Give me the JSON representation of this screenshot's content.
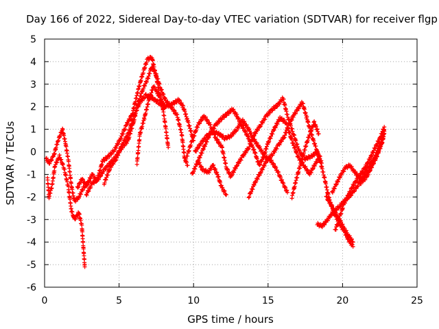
{
  "chart_data": {
    "type": "scatter",
    "title": "Day 166 of 2022, Sidereal Day-to-day VTEC variation (SDTVAR) for receiver flgp",
    "xlabel": "GPS time / hours",
    "ylabel": "SDTVAR / TECUs",
    "xlim": [
      0,
      25
    ],
    "ylim": [
      -6,
      5
    ],
    "xticks": [
      "0",
      "5",
      "10",
      "15",
      "20",
      "25"
    ],
    "yticks": [
      "-6",
      "-5",
      "-4",
      "-3",
      "-2",
      "-1",
      "0",
      "1",
      "2",
      "3",
      "4",
      "5"
    ],
    "grid": true,
    "marker": "+",
    "color": "#ff0000",
    "series": [
      {
        "name": "t1",
        "points": [
          [
            0.1,
            -0.3
          ],
          [
            0.3,
            -0.5
          ],
          [
            0.6,
            -0.2
          ],
          [
            0.9,
            0.5
          ],
          [
            1.2,
            1.0
          ],
          [
            1.4,
            0.4
          ],
          [
            1.6,
            -0.4
          ],
          [
            1.8,
            -1.5
          ],
          [
            2.0,
            -2.2
          ],
          [
            2.3,
            -2.0
          ],
          [
            2.6,
            -1.6
          ],
          [
            3.0,
            -1.3
          ]
        ]
      },
      {
        "name": "t2",
        "points": [
          [
            0.2,
            -1.2
          ],
          [
            0.3,
            -2.0
          ],
          [
            0.5,
            -1.5
          ],
          [
            0.7,
            -0.6
          ],
          [
            1.0,
            -0.2
          ],
          [
            1.3,
            -0.7
          ],
          [
            1.6,
            -1.6
          ],
          [
            1.8,
            -2.6
          ],
          [
            2.0,
            -3.0
          ],
          [
            2.3,
            -2.7
          ],
          [
            2.5,
            -3.3
          ],
          [
            2.6,
            -4.2
          ],
          [
            2.7,
            -5.1
          ]
        ]
      },
      {
        "name": "t3",
        "points": [
          [
            2.2,
            -1.6
          ],
          [
            2.5,
            -1.2
          ],
          [
            2.8,
            -1.5
          ],
          [
            3.2,
            -1.0
          ],
          [
            3.5,
            -1.3
          ],
          [
            3.9,
            -0.4
          ],
          [
            4.3,
            -0.2
          ],
          [
            4.7,
            0.1
          ],
          [
            5.1,
            0.6
          ],
          [
            5.5,
            1.2
          ],
          [
            5.9,
            1.7
          ],
          [
            6.3,
            2.8
          ],
          [
            6.6,
            3.5
          ],
          [
            6.9,
            4.1
          ],
          [
            7.2,
            4.2
          ],
          [
            7.5,
            3.3
          ],
          [
            7.7,
            2.6
          ],
          [
            7.9,
            2.1
          ],
          [
            8.1,
            1.2
          ],
          [
            8.3,
            0.2
          ]
        ]
      },
      {
        "name": "t4",
        "points": [
          [
            2.8,
            -1.9
          ],
          [
            3.2,
            -1.4
          ],
          [
            3.6,
            -1.2
          ],
          [
            4.0,
            -0.8
          ],
          [
            4.4,
            -0.5
          ],
          [
            4.8,
            -0.2
          ],
          [
            5.2,
            0.2
          ],
          [
            5.6,
            0.5
          ],
          [
            6.0,
            1.4
          ],
          [
            6.3,
            2.2
          ],
          [
            6.6,
            2.8
          ],
          [
            6.9,
            3.2
          ],
          [
            7.2,
            3.8
          ],
          [
            7.5,
            3.4
          ],
          [
            7.8,
            2.8
          ],
          [
            8.1,
            2.3
          ],
          [
            8.5,
            2.0
          ],
          [
            8.9,
            1.6
          ],
          [
            9.2,
            0.8
          ],
          [
            9.4,
            -0.3
          ],
          [
            9.6,
            -0.6
          ]
        ]
      },
      {
        "name": "t5",
        "points": [
          [
            4.0,
            -1.4
          ],
          [
            4.4,
            -0.7
          ],
          [
            4.8,
            -0.3
          ],
          [
            5.2,
            0.3
          ],
          [
            5.6,
            0.8
          ],
          [
            6.0,
            1.6
          ],
          [
            6.4,
            2.2
          ],
          [
            6.8,
            2.5
          ],
          [
            7.2,
            2.4
          ],
          [
            7.6,
            2.2
          ],
          [
            8.0,
            2.0
          ],
          [
            8.5,
            2.1
          ],
          [
            9.0,
            2.3
          ],
          [
            9.3,
            2.0
          ],
          [
            9.6,
            1.4
          ],
          [
            10.0,
            0.5
          ]
        ]
      },
      {
        "name": "t6",
        "points": [
          [
            6.2,
            -0.5
          ],
          [
            6.4,
            0.8
          ],
          [
            6.7,
            1.5
          ],
          [
            7.0,
            2.3
          ],
          [
            7.3,
            2.9
          ],
          [
            7.6,
            2.6
          ],
          [
            7.8,
            2.3
          ],
          [
            8.1,
            2.0
          ]
        ]
      },
      {
        "name": "t7",
        "points": [
          [
            9.5,
            -0.3
          ],
          [
            9.9,
            0.5
          ],
          [
            10.3,
            1.2
          ],
          [
            10.7,
            1.6
          ],
          [
            11.1,
            1.2
          ],
          [
            11.5,
            0.6
          ],
          [
            11.9,
            0.2
          ],
          [
            12.2,
            -0.7
          ],
          [
            12.5,
            -1.1
          ],
          [
            12.9,
            -0.6
          ],
          [
            13.3,
            -0.2
          ],
          [
            13.7,
            0.2
          ],
          [
            14.1,
            0.8
          ],
          [
            14.5,
            1.2
          ],
          [
            14.9,
            1.6
          ],
          [
            15.3,
            1.9
          ],
          [
            15.7,
            2.1
          ],
          [
            16.0,
            2.4
          ],
          [
            16.3,
            1.6
          ],
          [
            16.7,
            0.8
          ],
          [
            17.1,
            0.0
          ],
          [
            17.5,
            -0.3
          ],
          [
            17.9,
            -0.2
          ],
          [
            18.3,
            0.0
          ],
          [
            18.6,
            -0.5
          ]
        ]
      },
      {
        "name": "t8",
        "points": [
          [
            9.9,
            -1.0
          ],
          [
            10.3,
            -0.4
          ],
          [
            10.7,
            0.2
          ],
          [
            11.1,
            0.8
          ],
          [
            11.5,
            1.2
          ],
          [
            11.9,
            1.5
          ],
          [
            12.3,
            1.7
          ],
          [
            12.6,
            1.9
          ],
          [
            12.9,
            1.6
          ],
          [
            13.3,
            1.1
          ],
          [
            13.7,
            0.6
          ],
          [
            14.1,
            0.0
          ],
          [
            14.4,
            -0.6
          ],
          [
            14.7,
            -0.2
          ],
          [
            15.0,
            0.4
          ],
          [
            15.4,
            1.0
          ],
          [
            15.8,
            1.5
          ],
          [
            16.2,
            1.3
          ],
          [
            16.6,
            0.5
          ],
          [
            17.0,
            -0.2
          ],
          [
            17.4,
            -0.6
          ],
          [
            17.8,
            -1.0
          ],
          [
            18.1,
            -0.6
          ],
          [
            18.5,
            -0.2
          ]
        ]
      },
      {
        "name": "t9",
        "points": [
          [
            10.1,
            0.0
          ],
          [
            10.5,
            0.4
          ],
          [
            10.9,
            0.7
          ],
          [
            11.3,
            0.9
          ],
          [
            11.7,
            0.8
          ],
          [
            12.1,
            0.6
          ],
          [
            12.5,
            0.7
          ],
          [
            12.9,
            1.0
          ],
          [
            13.3,
            1.4
          ],
          [
            13.7,
            1.0
          ],
          [
            14.0,
            0.6
          ],
          [
            14.4,
            0.2
          ],
          [
            14.8,
            -0.2
          ],
          [
            15.2,
            -0.4
          ],
          [
            15.6,
            -0.8
          ],
          [
            16.0,
            -1.4
          ],
          [
            16.3,
            -1.8
          ]
        ]
      },
      {
        "name": "t10",
        "points": [
          [
            10.3,
            -0.4
          ],
          [
            10.6,
            -0.8
          ],
          [
            11.0,
            -0.9
          ],
          [
            11.3,
            -0.6
          ],
          [
            11.6,
            -1.0
          ],
          [
            11.9,
            -1.6
          ],
          [
            12.2,
            -1.9
          ]
        ]
      },
      {
        "name": "t11",
        "points": [
          [
            13.7,
            -2.0
          ],
          [
            14.1,
            -1.4
          ],
          [
            14.5,
            -0.9
          ],
          [
            14.9,
            -0.4
          ],
          [
            15.3,
            -0.1
          ],
          [
            15.7,
            0.3
          ],
          [
            16.1,
            0.7
          ],
          [
            16.4,
            1.2
          ],
          [
            16.7,
            1.6
          ],
          [
            17.0,
            1.9
          ],
          [
            17.3,
            2.2
          ],
          [
            17.6,
            1.5
          ],
          [
            17.9,
            0.8
          ],
          [
            18.2,
            0.2
          ],
          [
            18.5,
            -0.4
          ],
          [
            18.8,
            -1.2
          ],
          [
            19.0,
            -1.8
          ],
          [
            19.2,
            -2.3
          ],
          [
            19.5,
            -2.8
          ],
          [
            19.8,
            -3.2
          ],
          [
            20.1,
            -3.5
          ],
          [
            20.4,
            -3.9
          ],
          [
            20.7,
            -4.2
          ]
        ]
      },
      {
        "name": "t12",
        "points": [
          [
            16.6,
            -2.0
          ],
          [
            16.9,
            -1.2
          ],
          [
            17.2,
            -0.5
          ],
          [
            17.5,
            0.2
          ],
          [
            17.8,
            0.8
          ],
          [
            18.1,
            1.3
          ],
          [
            18.4,
            0.8
          ]
        ]
      },
      {
        "name": "t13",
        "points": [
          [
            18.3,
            -3.2
          ],
          [
            18.6,
            -3.3
          ],
          [
            18.9,
            -3.1
          ],
          [
            19.2,
            -2.8
          ],
          [
            19.5,
            -2.6
          ],
          [
            19.8,
            -2.4
          ],
          [
            20.1,
            -2.2
          ],
          [
            20.4,
            -2.0
          ],
          [
            20.7,
            -1.8
          ],
          [
            21.0,
            -1.5
          ],
          [
            21.3,
            -1.2
          ],
          [
            21.6,
            -0.8
          ],
          [
            21.9,
            -0.5
          ],
          [
            22.2,
            -0.2
          ],
          [
            22.5,
            0.3
          ],
          [
            22.8,
            0.9
          ]
        ]
      },
      {
        "name": "t14",
        "points": [
          [
            18.9,
            -2.0
          ],
          [
            19.2,
            -2.3
          ],
          [
            19.5,
            -2.7
          ],
          [
            19.8,
            -3.0
          ],
          [
            20.1,
            -3.4
          ],
          [
            20.4,
            -3.7
          ],
          [
            20.7,
            -4.0
          ]
        ]
      },
      {
        "name": "t15",
        "points": [
          [
            19.5,
            -3.5
          ],
          [
            19.8,
            -2.9
          ],
          [
            20.1,
            -2.3
          ],
          [
            20.4,
            -1.9
          ],
          [
            20.7,
            -1.5
          ],
          [
            21.0,
            -1.2
          ],
          [
            21.3,
            -0.9
          ],
          [
            21.6,
            -0.6
          ],
          [
            21.9,
            -0.2
          ],
          [
            22.2,
            0.2
          ],
          [
            22.5,
            0.6
          ],
          [
            22.8,
            1.1
          ]
        ]
      },
      {
        "name": "t16",
        "points": [
          [
            19.3,
            -1.8
          ],
          [
            19.6,
            -1.4
          ],
          [
            19.9,
            -1.0
          ],
          [
            20.2,
            -0.7
          ],
          [
            20.5,
            -0.6
          ],
          [
            20.8,
            -0.9
          ],
          [
            21.1,
            -1.1
          ],
          [
            21.4,
            -1.3
          ],
          [
            21.7,
            -1.0
          ],
          [
            22.0,
            -0.6
          ],
          [
            22.3,
            -0.2
          ],
          [
            22.6,
            0.3
          ],
          [
            22.8,
            0.8
          ]
        ]
      },
      {
        "name": "t17",
        "points": [
          [
            21.2,
            -1.4
          ],
          [
            21.5,
            -1.1
          ],
          [
            21.8,
            -0.8
          ],
          [
            22.1,
            -0.4
          ],
          [
            22.4,
            0.1
          ],
          [
            22.7,
            0.5
          ],
          [
            22.8,
            1.0
          ]
        ]
      }
    ]
  }
}
